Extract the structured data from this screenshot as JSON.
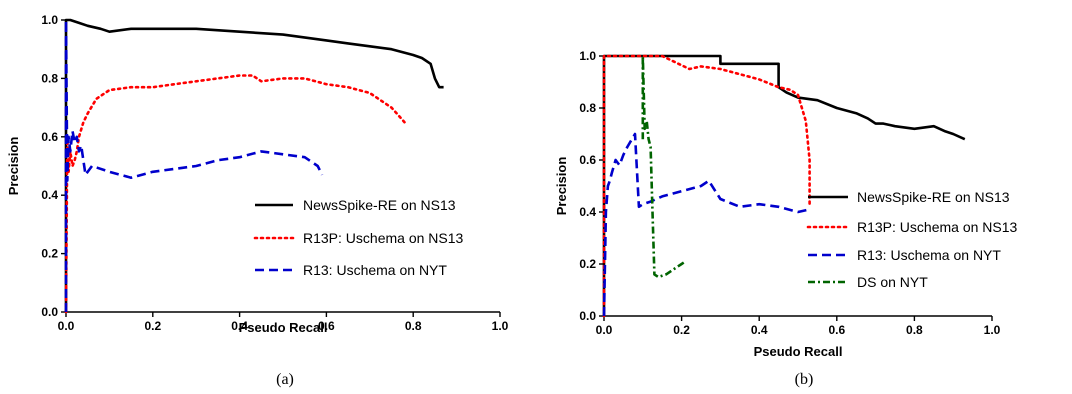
{
  "chart_data": [
    {
      "type": "line",
      "caption": "(a)",
      "xlabel": "Pseudo Recall",
      "ylabel": "Precision",
      "xlim": [
        0,
        1.0
      ],
      "ylim": [
        0,
        1.0
      ],
      "xticks": [
        "0.0",
        "0.2",
        "0.4",
        "0.6",
        "0.8",
        "1.0"
      ],
      "yticks": [
        "0.0",
        "0.2",
        "0.4",
        "0.6",
        "0.8",
        "1.0"
      ],
      "legend_position": "right",
      "series": [
        {
          "name": "NewsSpike-RE on NS13",
          "color": "#000000",
          "dash": "solid",
          "x": [
            0.0,
            0.0,
            0.01,
            0.03,
            0.05,
            0.08,
            0.1,
            0.15,
            0.2,
            0.3,
            0.4,
            0.5,
            0.6,
            0.65,
            0.7,
            0.75,
            0.8,
            0.82,
            0.84,
            0.85,
            0.86,
            0.87
          ],
          "y": [
            0.0,
            1.0,
            1.0,
            0.99,
            0.98,
            0.97,
            0.96,
            0.97,
            0.97,
            0.97,
            0.96,
            0.95,
            0.93,
            0.92,
            0.91,
            0.9,
            0.88,
            0.87,
            0.85,
            0.8,
            0.77,
            0.77
          ]
        },
        {
          "name": "R13P: Uschema on NS13",
          "color": "#ff0000",
          "dash": "dotted",
          "x": [
            0.0,
            0.003,
            0.006,
            0.01,
            0.015,
            0.02,
            0.025,
            0.03,
            0.04,
            0.05,
            0.07,
            0.1,
            0.15,
            0.2,
            0.25,
            0.3,
            0.35,
            0.4,
            0.43,
            0.45,
            0.5,
            0.55,
            0.6,
            0.65,
            0.7,
            0.75,
            0.78
          ],
          "y": [
            0.0,
            0.6,
            0.48,
            0.55,
            0.5,
            0.52,
            0.55,
            0.6,
            0.65,
            0.68,
            0.73,
            0.76,
            0.77,
            0.77,
            0.78,
            0.79,
            0.8,
            0.81,
            0.81,
            0.79,
            0.8,
            0.8,
            0.78,
            0.77,
            0.75,
            0.7,
            0.65
          ]
        },
        {
          "name": "R13: Uschema on NYT",
          "color": "#0000cc",
          "dash": "dashed",
          "x": [
            0.0,
            0.0,
            0.003,
            0.006,
            0.01,
            0.015,
            0.02,
            0.025,
            0.03,
            0.035,
            0.045,
            0.06,
            0.1,
            0.15,
            0.2,
            0.25,
            0.3,
            0.35,
            0.4,
            0.45,
            0.5,
            0.55,
            0.58,
            0.59
          ],
          "y": [
            0.0,
            1.0,
            0.45,
            0.6,
            0.55,
            0.62,
            0.58,
            0.6,
            0.55,
            0.57,
            0.47,
            0.5,
            0.48,
            0.46,
            0.48,
            0.49,
            0.5,
            0.52,
            0.53,
            0.55,
            0.54,
            0.53,
            0.5,
            0.47
          ]
        }
      ]
    },
    {
      "type": "line",
      "caption": "(b)",
      "xlabel": "Pseudo Recall",
      "ylabel": "Precision",
      "xlim": [
        0,
        1.0
      ],
      "ylim": [
        0,
        1.0
      ],
      "xticks": [
        "0.0",
        "0.2",
        "0.4",
        "0.6",
        "0.8",
        "1.0"
      ],
      "yticks": [
        "0.0",
        "0.2",
        "0.4",
        "0.6",
        "0.8",
        "1.0"
      ],
      "legend_position": "right",
      "series": [
        {
          "name": "NewsSpike-RE on NS13",
          "color": "#000000",
          "dash": "solid",
          "x": [
            0.0,
            0.0,
            0.3,
            0.3,
            0.45,
            0.45,
            0.47,
            0.5,
            0.55,
            0.6,
            0.65,
            0.68,
            0.7,
            0.72,
            0.75,
            0.8,
            0.85,
            0.88,
            0.9,
            0.93
          ],
          "y": [
            0.0,
            1.0,
            1.0,
            0.97,
            0.97,
            0.88,
            0.86,
            0.84,
            0.83,
            0.8,
            0.78,
            0.76,
            0.74,
            0.74,
            0.73,
            0.72,
            0.73,
            0.71,
            0.7,
            0.68
          ]
        },
        {
          "name": "R13P: Uschema on NS13",
          "color": "#ff0000",
          "dash": "dotted",
          "x": [
            0.0,
            0.0,
            0.15,
            0.22,
            0.25,
            0.3,
            0.35,
            0.4,
            0.45,
            0.48,
            0.5,
            0.51,
            0.52,
            0.53,
            0.53
          ],
          "y": [
            0.0,
            1.0,
            1.0,
            0.95,
            0.96,
            0.95,
            0.93,
            0.91,
            0.88,
            0.87,
            0.85,
            0.8,
            0.75,
            0.6,
            0.42
          ]
        },
        {
          "name": "R13: Uschema on NYT",
          "color": "#0000cc",
          "dash": "dashed",
          "x": [
            0.0,
            0.005,
            0.01,
            0.015,
            0.02,
            0.03,
            0.04,
            0.05,
            0.06,
            0.08,
            0.09,
            0.1,
            0.12,
            0.15,
            0.2,
            0.25,
            0.27,
            0.3,
            0.35,
            0.4,
            0.45,
            0.5,
            0.53
          ],
          "y": [
            0.0,
            0.4,
            0.5,
            0.52,
            0.55,
            0.6,
            0.58,
            0.62,
            0.65,
            0.7,
            0.42,
            0.43,
            0.44,
            0.46,
            0.48,
            0.5,
            0.52,
            0.45,
            0.42,
            0.43,
            0.42,
            0.4,
            0.41
          ]
        },
        {
          "name": "DS on NYT",
          "color": "#006400",
          "dash": "dashdot",
          "x": [
            0.1,
            0.1,
            0.105,
            0.11,
            0.115,
            0.12,
            0.125,
            0.13,
            0.14,
            0.16,
            0.18,
            0.2,
            0.21
          ],
          "y": [
            0.68,
            1.0,
            0.72,
            0.75,
            0.68,
            0.65,
            0.4,
            0.16,
            0.15,
            0.16,
            0.18,
            0.2,
            0.21
          ]
        }
      ]
    }
  ]
}
